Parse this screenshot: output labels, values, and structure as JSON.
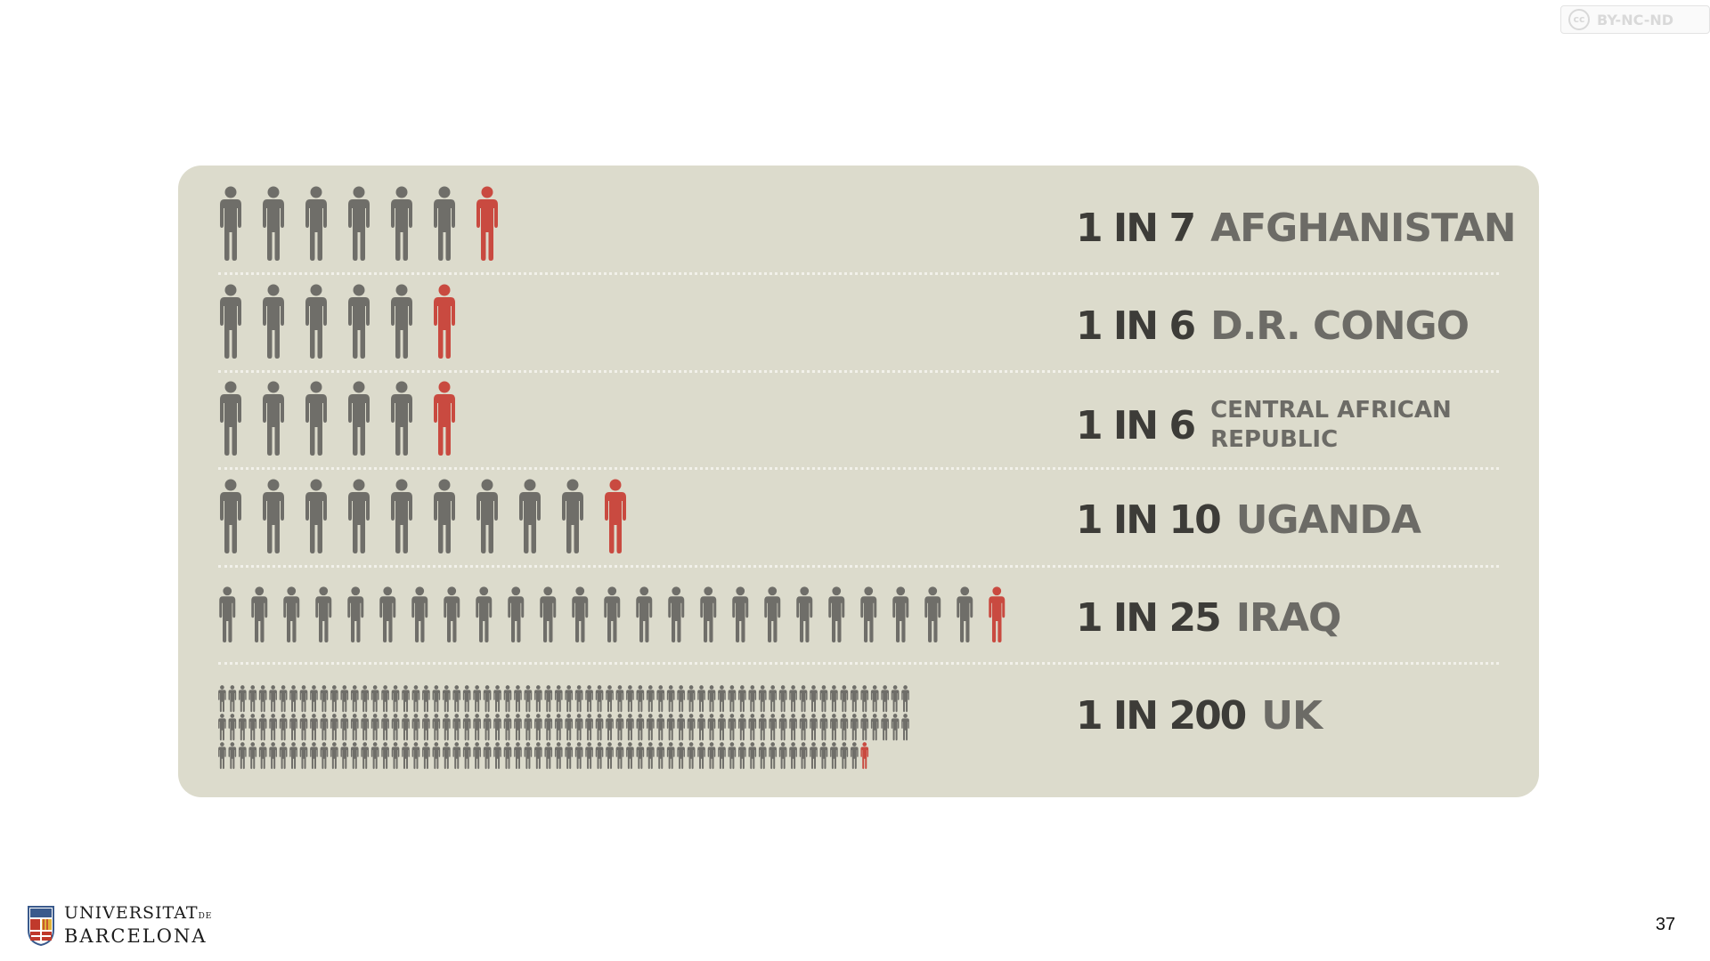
{
  "license": {
    "cc": "cc",
    "label": "BY-NC-ND"
  },
  "colors": {
    "panel": "#dcdbcc",
    "figure_gray": "#6f6e69",
    "figure_red": "#c94a40",
    "ratio_text": "#3d3c38",
    "country_text": "#6c6b66"
  },
  "rows": [
    {
      "ratio": "1 IN 7",
      "country": "AFGHANISTAN",
      "total": 7
    },
    {
      "ratio": "1 IN 6",
      "country": "D.R. CONGO",
      "total": 6
    },
    {
      "ratio": "1 IN 6",
      "country": "CENTRAL AFRICAN REPUBLIC",
      "total": 6
    },
    {
      "ratio": "1 IN 10",
      "country": "UGANDA",
      "total": 10
    },
    {
      "ratio": "1 IN 25",
      "country": "IRAQ",
      "total": 25
    },
    {
      "ratio": "1 IN 200",
      "country": "UK",
      "total": 200
    }
  ],
  "logo": {
    "line1": "UNIVERSITAT",
    "line1_suffix": "DE",
    "line2": "BARCELONA"
  },
  "page_number": "37"
}
